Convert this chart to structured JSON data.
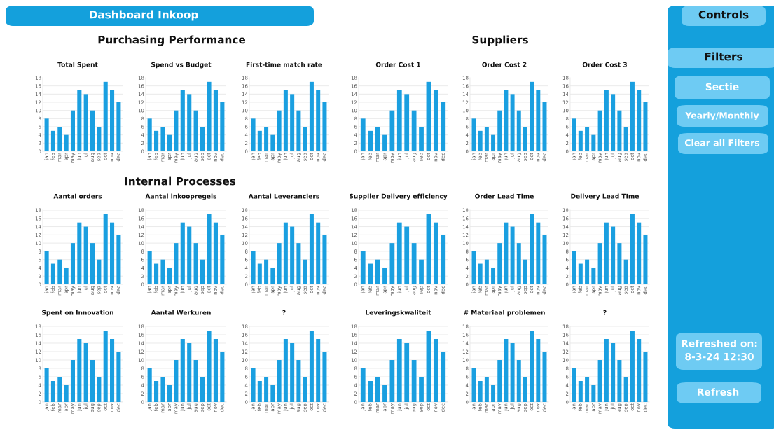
{
  "chart_data": [
    {
      "type": "bar",
      "title": "Total Spent",
      "categories": [
        "jan",
        "feb",
        "mar",
        "apr",
        "may",
        "jun",
        "jul",
        "aug",
        "sep",
        "oct",
        "nov",
        "dec"
      ],
      "values": [
        8,
        5,
        6,
        4,
        10,
        15,
        14,
        10,
        6,
        17,
        15,
        12
      ],
      "color": "#1a9fe0",
      "ylim": [
        0,
        18
      ],
      "yticks": [
        0,
        2,
        4,
        6,
        8,
        10,
        12,
        14,
        16,
        18
      ],
      "grid": "y"
    },
    {
      "type": "bar",
      "title": "Spend vs Budget",
      "categories": [
        "jan",
        "feb",
        "mar",
        "apr",
        "may",
        "jun",
        "jul",
        "aug",
        "sep",
        "oct",
        "nov",
        "dec"
      ],
      "values": [
        8,
        5,
        6,
        4,
        10,
        15,
        14,
        10,
        6,
        17,
        15,
        12
      ],
      "color": "#1a9fe0",
      "ylim": [
        0,
        18
      ],
      "yticks": [
        0,
        2,
        4,
        6,
        8,
        10,
        12,
        14,
        16,
        18
      ],
      "grid": "y"
    },
    {
      "type": "bar",
      "title": "First-time match rate",
      "categories": [
        "jan",
        "feb",
        "mar",
        "apr",
        "may",
        "jun",
        "jul",
        "aug",
        "sep",
        "oct",
        "nov",
        "dec"
      ],
      "values": [
        8,
        5,
        6,
        4,
        10,
        15,
        14,
        10,
        6,
        17,
        15,
        12
      ],
      "color": "#1a9fe0",
      "ylim": [
        0,
        18
      ],
      "yticks": [
        0,
        2,
        4,
        6,
        8,
        10,
        12,
        14,
        16,
        18
      ],
      "grid": "y"
    },
    {
      "type": "bar",
      "title": "Order Cost 1",
      "categories": [
        "jan",
        "feb",
        "mar",
        "apr",
        "may",
        "jun",
        "jul",
        "aug",
        "sep",
        "oct",
        "nov",
        "dec"
      ],
      "values": [
        8,
        5,
        6,
        4,
        10,
        15,
        14,
        10,
        6,
        17,
        15,
        12
      ],
      "color": "#1a9fe0",
      "ylim": [
        0,
        18
      ],
      "yticks": [
        0,
        2,
        4,
        6,
        8,
        10,
        12,
        14,
        16,
        18
      ],
      "grid": "y"
    },
    {
      "type": "bar",
      "title": "Order Cost 2",
      "categories": [
        "jan",
        "feb",
        "mar",
        "apr",
        "may",
        "jun",
        "jul",
        "aug",
        "sep",
        "oct",
        "nov",
        "dec"
      ],
      "values": [
        8,
        5,
        6,
        4,
        10,
        15,
        14,
        10,
        6,
        17,
        15,
        12
      ],
      "color": "#1a9fe0",
      "ylim": [
        0,
        18
      ],
      "yticks": [
        0,
        2,
        4,
        6,
        8,
        10,
        12,
        14,
        16,
        18
      ],
      "grid": "y"
    },
    {
      "type": "bar",
      "title": "Order Cost 3",
      "categories": [
        "jan",
        "feb",
        "mar",
        "apr",
        "may",
        "jun",
        "jul",
        "aug",
        "sep",
        "oct",
        "nov",
        "dec"
      ],
      "values": [
        8,
        5,
        6,
        4,
        10,
        15,
        14,
        10,
        6,
        17,
        15,
        12
      ],
      "color": "#1a9fe0",
      "ylim": [
        0,
        18
      ],
      "yticks": [
        0,
        2,
        4,
        6,
        8,
        10,
        12,
        14,
        16,
        18
      ],
      "grid": "y"
    },
    {
      "type": "bar",
      "title": "Aantal orders",
      "categories": [
        "jan",
        "feb",
        "mar",
        "apr",
        "may",
        "jun",
        "jul",
        "aug",
        "sep",
        "oct",
        "nov",
        "dec"
      ],
      "values": [
        8,
        5,
        6,
        4,
        10,
        15,
        14,
        10,
        6,
        17,
        15,
        12
      ],
      "color": "#1a9fe0",
      "ylim": [
        0,
        18
      ],
      "yticks": [
        0,
        2,
        4,
        6,
        8,
        10,
        12,
        14,
        16,
        18
      ],
      "grid": "y"
    },
    {
      "type": "bar",
      "title": "Aantal inkoopregels",
      "categories": [
        "jan",
        "feb",
        "mar",
        "apr",
        "may",
        "jun",
        "jul",
        "aug",
        "sep",
        "oct",
        "nov",
        "dec"
      ],
      "values": [
        8,
        5,
        6,
        4,
        10,
        15,
        14,
        10,
        6,
        17,
        15,
        12
      ],
      "color": "#1a9fe0",
      "ylim": [
        0,
        18
      ],
      "yticks": [
        0,
        2,
        4,
        6,
        8,
        10,
        12,
        14,
        16,
        18
      ],
      "grid": "y"
    },
    {
      "type": "bar",
      "title": "Aantal Leveranciers",
      "categories": [
        "jan",
        "feb",
        "mar",
        "apr",
        "may",
        "jun",
        "jul",
        "aug",
        "sep",
        "oct",
        "nov",
        "dec"
      ],
      "values": [
        8,
        5,
        6,
        4,
        10,
        15,
        14,
        10,
        6,
        17,
        15,
        12
      ],
      "color": "#1a9fe0",
      "ylim": [
        0,
        18
      ],
      "yticks": [
        0,
        2,
        4,
        6,
        8,
        10,
        12,
        14,
        16,
        18
      ],
      "grid": "y"
    },
    {
      "type": "bar",
      "title": "Supplier Delivery efficiency",
      "categories": [
        "jan",
        "feb",
        "mar",
        "apr",
        "may",
        "jun",
        "jul",
        "aug",
        "sep",
        "oct",
        "nov",
        "dec"
      ],
      "values": [
        8,
        5,
        6,
        4,
        10,
        15,
        14,
        10,
        6,
        17,
        15,
        12
      ],
      "color": "#1a9fe0",
      "ylim": [
        0,
        18
      ],
      "yticks": [
        0,
        2,
        4,
        6,
        8,
        10,
        12,
        14,
        16,
        18
      ],
      "grid": "y"
    },
    {
      "type": "bar",
      "title": "Order Lead Time",
      "categories": [
        "jan",
        "feb",
        "mar",
        "apr",
        "may",
        "jun",
        "jul",
        "aug",
        "sep",
        "oct",
        "nov",
        "dec"
      ],
      "values": [
        8,
        5,
        6,
        4,
        10,
        15,
        14,
        10,
        6,
        17,
        15,
        12
      ],
      "color": "#1a9fe0",
      "ylim": [
        0,
        18
      ],
      "yticks": [
        0,
        2,
        4,
        6,
        8,
        10,
        12,
        14,
        16,
        18
      ],
      "grid": "y"
    },
    {
      "type": "bar",
      "title": "Delivery Lead TIme",
      "categories": [
        "jan",
        "feb",
        "mar",
        "apr",
        "may",
        "jun",
        "jul",
        "aug",
        "sep",
        "oct",
        "nov",
        "dec"
      ],
      "values": [
        8,
        5,
        6,
        4,
        10,
        15,
        14,
        10,
        6,
        17,
        15,
        12
      ],
      "color": "#1a9fe0",
      "ylim": [
        0,
        18
      ],
      "yticks": [
        0,
        2,
        4,
        6,
        8,
        10,
        12,
        14,
        16,
        18
      ],
      "grid": "y"
    },
    {
      "type": "bar",
      "title": "Spent on Innovation",
      "categories": [
        "jan",
        "feb",
        "mar",
        "apr",
        "may",
        "jun",
        "jul",
        "aug",
        "sep",
        "oct",
        "nov",
        "dec"
      ],
      "values": [
        8,
        5,
        6,
        4,
        10,
        15,
        14,
        10,
        6,
        17,
        15,
        12
      ],
      "color": "#1a9fe0",
      "ylim": [
        0,
        18
      ],
      "yticks": [
        0,
        2,
        4,
        6,
        8,
        10,
        12,
        14,
        16,
        18
      ],
      "grid": "y"
    },
    {
      "type": "bar",
      "title": "Aantal Werkuren",
      "categories": [
        "jan",
        "feb",
        "mar",
        "apr",
        "may",
        "jun",
        "jul",
        "aug",
        "sep",
        "oct",
        "nov",
        "dec"
      ],
      "values": [
        8,
        5,
        6,
        4,
        10,
        15,
        14,
        10,
        6,
        17,
        15,
        12
      ],
      "color": "#1a9fe0",
      "ylim": [
        0,
        18
      ],
      "yticks": [
        0,
        2,
        4,
        6,
        8,
        10,
        12,
        14,
        16,
        18
      ],
      "grid": "y"
    },
    {
      "type": "bar",
      "title": "?",
      "categories": [
        "jan",
        "feb",
        "mar",
        "apr",
        "may",
        "jun",
        "jul",
        "aug",
        "sep",
        "oct",
        "nov",
        "dec"
      ],
      "values": [
        8,
        5,
        6,
        4,
        10,
        15,
        14,
        10,
        6,
        17,
        15,
        12
      ],
      "color": "#1a9fe0",
      "ylim": [
        0,
        18
      ],
      "yticks": [
        0,
        2,
        4,
        6,
        8,
        10,
        12,
        14,
        16,
        18
      ],
      "grid": "y"
    },
    {
      "type": "bar",
      "title": "Leveringskwaliteit",
      "categories": [
        "jan",
        "feb",
        "mar",
        "apr",
        "may",
        "jun",
        "jul",
        "aug",
        "sep",
        "oct",
        "nov",
        "dec"
      ],
      "values": [
        8,
        5,
        6,
        4,
        10,
        15,
        14,
        10,
        6,
        17,
        15,
        12
      ],
      "color": "#1a9fe0",
      "ylim": [
        0,
        18
      ],
      "yticks": [
        0,
        2,
        4,
        6,
        8,
        10,
        12,
        14,
        16,
        18
      ],
      "grid": "y"
    },
    {
      "type": "bar",
      "title": "# Materiaal problemen",
      "categories": [
        "jan",
        "feb",
        "mar",
        "apr",
        "may",
        "jun",
        "jul",
        "aug",
        "sep",
        "oct",
        "nov",
        "dec"
      ],
      "values": [
        8,
        5,
        6,
        4,
        10,
        15,
        14,
        10,
        6,
        17,
        15,
        12
      ],
      "color": "#1a9fe0",
      "ylim": [
        0,
        18
      ],
      "yticks": [
        0,
        2,
        4,
        6,
        8,
        10,
        12,
        14,
        16,
        18
      ],
      "grid": "y"
    },
    {
      "type": "bar",
      "title": "?",
      "categories": [
        "jan",
        "feb",
        "mar",
        "apr",
        "may",
        "jun",
        "jul",
        "aug",
        "sep",
        "oct",
        "nov",
        "dec"
      ],
      "values": [
        8,
        5,
        6,
        4,
        10,
        15,
        14,
        10,
        6,
        17,
        15,
        12
      ],
      "color": "#1a9fe0",
      "ylim": [
        0,
        18
      ],
      "yticks": [
        0,
        2,
        4,
        6,
        8,
        10,
        12,
        14,
        16,
        18
      ],
      "grid": "y"
    },
    {
      "type": "other",
      "title": "Dashboard Inkoop",
      "annotations": [
        "Purchasing Performance",
        "Internal Processes",
        "Suppliers",
        "Controls",
        "Filters",
        "Sectie",
        "Yearly/Monthly",
        "Clear all Filters",
        "Refreshed on:\n8-3-24 12:30",
        "Refresh"
      ]
    }
  ]
}
